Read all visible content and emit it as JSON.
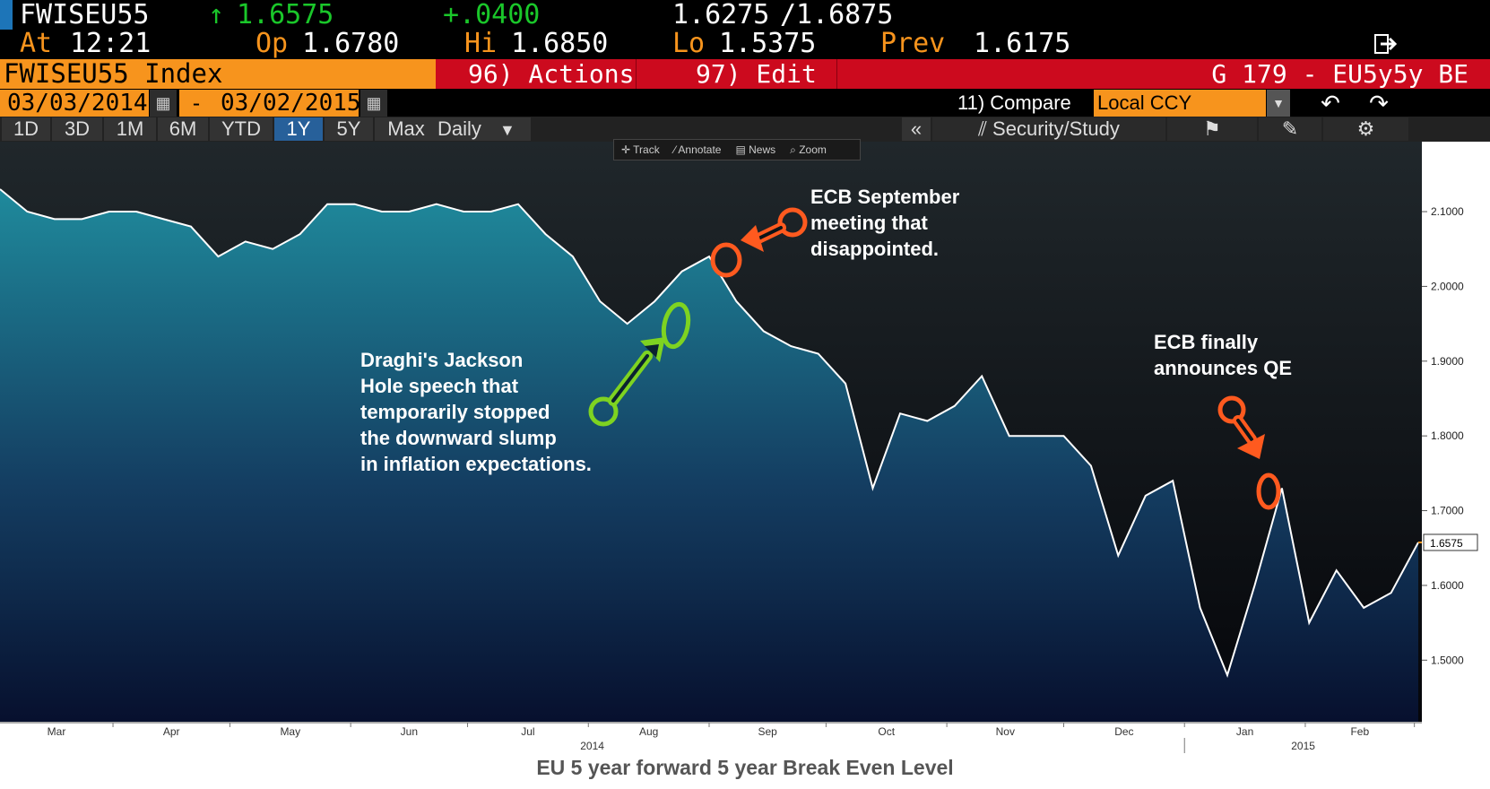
{
  "quote": {
    "ticker": "FWISEU55",
    "last_arrow": "↑",
    "last": "1.6575",
    "change": "+.0400",
    "bid": "1.6275",
    "ask": "1.6875",
    "at_label": "At",
    "time": "12:21",
    "open_label": "Op",
    "open": "1.6780",
    "high_label": "Hi",
    "high": "1.6850",
    "low_label": "Lo",
    "low": "1.5375",
    "prev_label": "Prev",
    "prev": "1.6175"
  },
  "toolbar": {
    "index_label": "FWISEU55 Index",
    "actions_label": "96) Actions",
    "edit_label": "97) Edit",
    "chart_id": "G 179 - EU5y5y BE",
    "start_date": "03/03/2014",
    "date_sep": "-",
    "end_date": "03/02/2015",
    "compare_label": "11) Compare",
    "currency_label": "Local CCY",
    "security_study_label": "Security/Study",
    "ranges": [
      "1D",
      "3D",
      "1M",
      "6M",
      "YTD",
      "1Y",
      "5Y",
      "Max"
    ],
    "selected_range": "1Y",
    "frequency": "Daily"
  },
  "chart_tools": [
    "Track",
    "Annotate",
    "News",
    "Zoom"
  ],
  "annotations": {
    "jackson_hole": "Draghi's Jackson\nHole speech that\ntemporarily stopped\nthe downward slump\nin inflation expectations.",
    "ecb_september": "ECB September\nmeeting that\ndisappointed.",
    "ecb_qe": "ECB finally\nannounces QE"
  },
  "caption": "EU 5 year forward 5 year Break Even Level",
  "colors": {
    "header_orange": "#f7941d",
    "red_bar": "#cc0a1e",
    "up_green": "#1ac72a",
    "area_top": "#1f8a9c",
    "area_bottom": "#07102e",
    "green_marker": "#7ed321",
    "red_marker": "#ff5a1f"
  },
  "chart_data": {
    "type": "area",
    "title": "",
    "ylim": [
      1.42,
      2.19
    ],
    "yticks": [
      "2.1000",
      "2.0000",
      "1.9000",
      "1.8000",
      "1.7000",
      "1.6000",
      "1.5000"
    ],
    "last_value_label": "1.6575",
    "x_month_labels": [
      "Mar",
      "Apr",
      "May",
      "Jun",
      "Jul",
      "Aug",
      "Sep",
      "Oct",
      "Nov",
      "Dec",
      "Jan",
      "Feb"
    ],
    "x_year_labels": [
      "2014",
      "2015"
    ],
    "x": [
      "2014-03-03",
      "2014-03-10",
      "2014-03-17",
      "2014-03-24",
      "2014-03-31",
      "2014-04-07",
      "2014-04-14",
      "2014-04-21",
      "2014-04-28",
      "2014-05-05",
      "2014-05-12",
      "2014-05-19",
      "2014-05-26",
      "2014-06-02",
      "2014-06-09",
      "2014-06-16",
      "2014-06-23",
      "2014-06-30",
      "2014-07-07",
      "2014-07-14",
      "2014-07-21",
      "2014-07-28",
      "2014-08-04",
      "2014-08-11",
      "2014-08-18",
      "2014-08-25",
      "2014-09-01",
      "2014-09-08",
      "2014-09-15",
      "2014-09-22",
      "2014-09-29",
      "2014-10-06",
      "2014-10-13",
      "2014-10-20",
      "2014-10-27",
      "2014-11-03",
      "2014-11-10",
      "2014-11-17",
      "2014-11-24",
      "2014-12-01",
      "2014-12-08",
      "2014-12-15",
      "2014-12-22",
      "2014-12-29",
      "2015-01-05",
      "2015-01-12",
      "2015-01-19",
      "2015-01-26",
      "2015-02-02",
      "2015-02-09",
      "2015-02-16",
      "2015-02-23",
      "2015-03-02"
    ],
    "values": [
      2.13,
      2.1,
      2.09,
      2.09,
      2.1,
      2.1,
      2.09,
      2.08,
      2.04,
      2.06,
      2.05,
      2.07,
      2.11,
      2.11,
      2.1,
      2.1,
      2.11,
      2.1,
      2.1,
      2.11,
      2.07,
      2.04,
      1.98,
      1.95,
      1.98,
      2.02,
      2.04,
      1.98,
      1.94,
      1.92,
      1.91,
      1.87,
      1.73,
      1.83,
      1.82,
      1.84,
      1.88,
      1.8,
      1.8,
      1.8,
      1.76,
      1.64,
      1.72,
      1.74,
      1.57,
      1.48,
      1.6,
      1.73,
      1.55,
      1.62,
      1.57,
      1.59,
      1.6575
    ]
  }
}
